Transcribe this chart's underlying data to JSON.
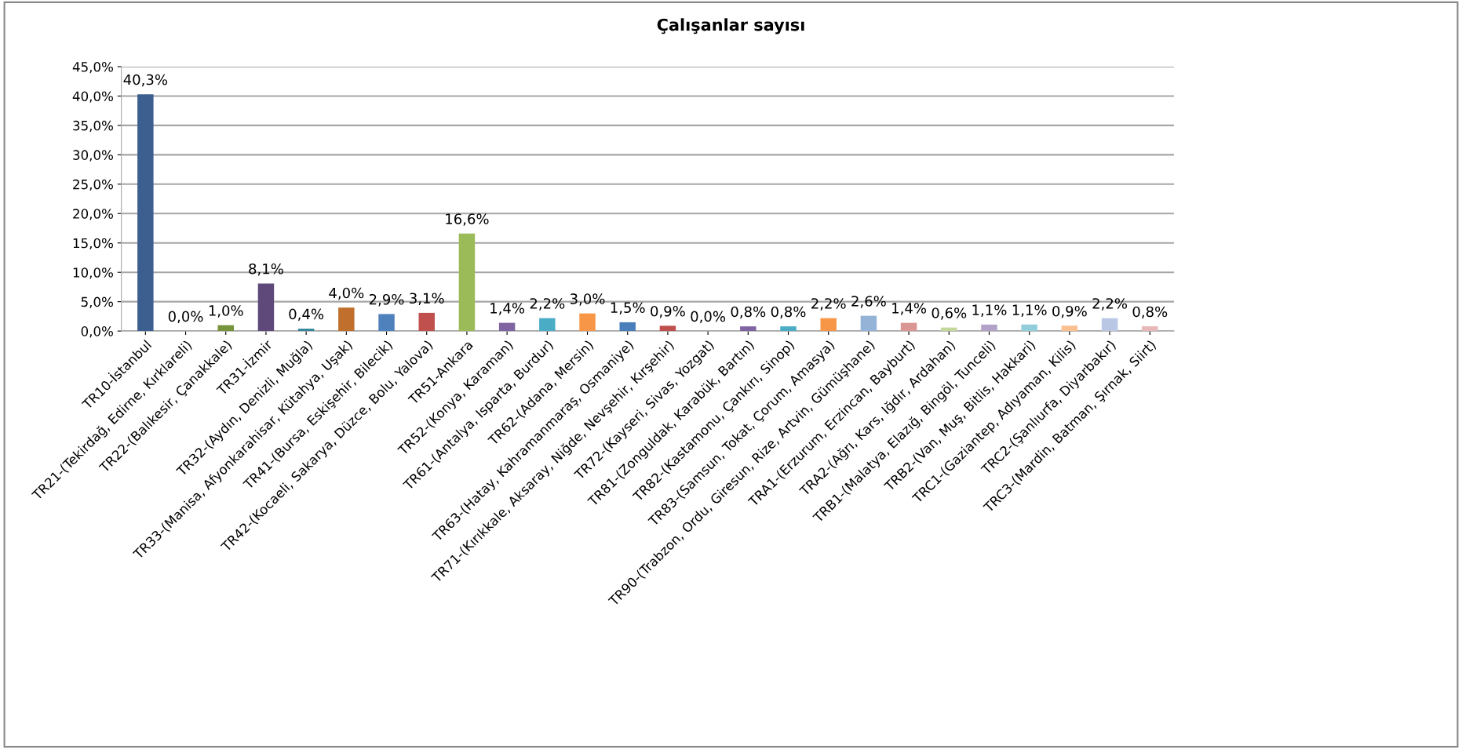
{
  "chart_data": {
    "type": "bar",
    "title": "Çalışanlar sayısı",
    "categories": [
      "TR10-İstanbul",
      "TR21-(Tekirdağ, Edirne, Kırklareli)",
      "TR22-(Balıkesir, Çanakkale)",
      "TR31-İzmir",
      "TR32-(Aydın, Denizli, Muğla)",
      "TR33-(Manisa, Afyonkarahisar, Kütahya, Uşak)",
      "TR41-(Bursa, Eskişehir, Bilecik)",
      "TR42-(Kocaeli, Sakarya, Düzce, Bolu, Yalova)",
      "TR51-Ankara",
      "TR52-(Konya, Karaman)",
      "TR61-(Antalya, Isparta, Burdur)",
      "TR62-(Adana, Mersin)",
      "TR63-(Hatay, Kahramanmaraş, Osmaniye)",
      "TR71-(Kırıkkale, Aksaray, Niğde, Nevşehir, Kırşehir)",
      "TR72-(Kayseri, Sivas, Yozgat)",
      "TR81-(Zonguldak, Karabük, Bartın)",
      "TR82-(Kastamonu, Çankırı, Sinop)",
      "TR83-(Samsun, Tokat, Çorum, Amasya)",
      "TR90-(Trabzon, Ordu, Giresun, Rize, Artvin, Gümüşhane)",
      "TRA1-(Erzurum, Erzincan, Bayburt)",
      "TRA2-(Ağrı, Kars, Iğdır, Ardahan)",
      "TRB1-(Malatya, Elazığ, Bingöl, Tunceli)",
      "TRB2-(Van, Muş, Bitlis, Hakkari)",
      "TRC1-(Gaziantep, Adıyaman, Kilis)",
      "TRC2-(Şanlıurfa, Diyarbakır)",
      "TRC3-(Mardin, Batman, Şırnak, Siirt)"
    ],
    "values": [
      40.3,
      0.0,
      1.0,
      8.1,
      0.4,
      4.0,
      2.9,
      3.1,
      16.6,
      1.4,
      2.2,
      3.0,
      1.5,
      0.9,
      0.0,
      0.8,
      0.8,
      2.2,
      2.6,
      1.4,
      0.6,
      1.1,
      1.1,
      0.9,
      2.2,
      0.8
    ],
    "value_labels": [
      "40,3%",
      "0,0%",
      "1,0%",
      "8,1%",
      "0,4%",
      "4,0%",
      "2,9%",
      "3,1%",
      "16,6%",
      "1,4%",
      "2,2%",
      "3,0%",
      "1,5%",
      "0,9%",
      "0,0%",
      "0,8%",
      "0,8%",
      "2,2%",
      "2,6%",
      "1,4%",
      "0,6%",
      "1,1%",
      "1,1%",
      "0,9%",
      "2,2%",
      "0,8%"
    ],
    "colors": [
      "#3c5f8f",
      "#943634",
      "#77933c",
      "#5f497a",
      "#31849b",
      "#c0702c",
      "#4f81bd",
      "#c0504d",
      "#9bbb59",
      "#8064a2",
      "#4bacc6",
      "#f79646",
      "#4a7ebb",
      "#c0504d",
      "#9bbb59",
      "#8064a2",
      "#4bacc6",
      "#f79646",
      "#95b3d7",
      "#d99694",
      "#c3d69b",
      "#b2a2c7",
      "#92cddc",
      "#fac08f",
      "#b9c7e4",
      "#e6b9b8"
    ],
    "ylim": [
      0,
      45
    ],
    "yticks": [
      {
        "value": 0,
        "label": "0,0%"
      },
      {
        "value": 5,
        "label": "5,0%"
      },
      {
        "value": 10,
        "label": "10,0%"
      },
      {
        "value": 15,
        "label": "15,0%"
      },
      {
        "value": 20,
        "label": "20,0%"
      },
      {
        "value": 25,
        "label": "25,0%"
      },
      {
        "value": 30,
        "label": "30,0%"
      },
      {
        "value": 35,
        "label": "35,0%"
      },
      {
        "value": 40,
        "label": "40,0%"
      },
      {
        "value": 45,
        "label": "45,0%"
      }
    ],
    "grid": "y",
    "legend": false
  }
}
